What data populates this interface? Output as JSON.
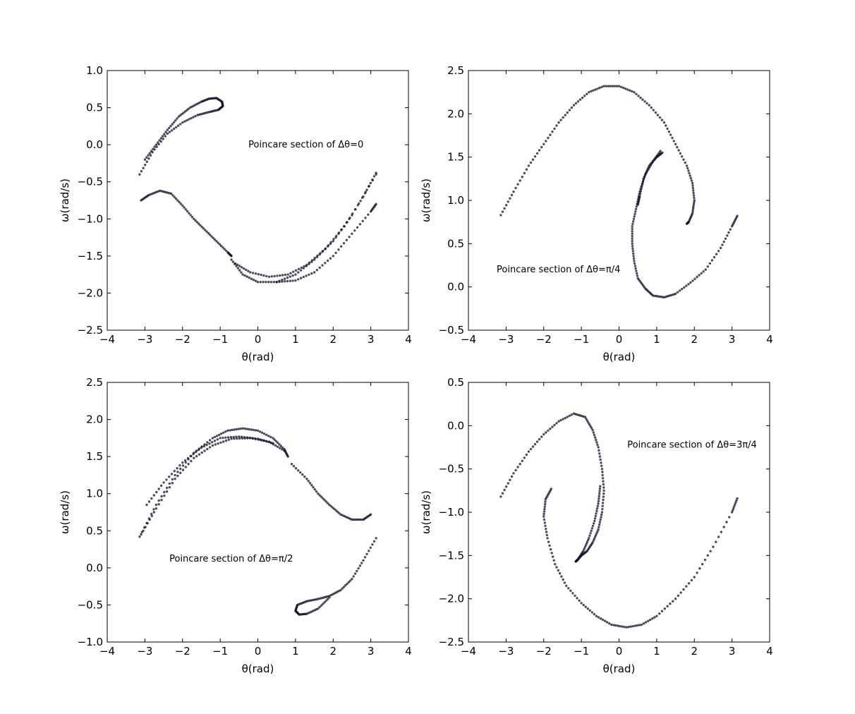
{
  "chart_data": [
    {
      "type": "scatter",
      "xlabel": "θ(rad)",
      "ylabel": "ω(rad/s)",
      "xlim": [
        -4,
        4
      ],
      "ylim": [
        -2.5,
        1.0
      ],
      "xticks": [
        "−4",
        "−3",
        "−2",
        "−1",
        "0",
        "1",
        "2",
        "3",
        "4"
      ],
      "yticks": [
        "−2.5",
        "−2.0",
        "−1.5",
        "−1.0",
        "−0.5",
        "0.0",
        "0.5",
        "1.0"
      ],
      "annotation": "Poincare section of Δθ=0",
      "annotation_pos": [
        -0.25,
        0.0
      ],
      "color": "#12122b",
      "series": [
        {
          "x": [
            -3.14,
            -2.8,
            -2.4,
            -2.0,
            -1.6,
            -1.3,
            -1.05,
            -0.93,
            -0.95,
            -1.1,
            -1.3,
            -1.5,
            -1.8,
            -2.1,
            -2.4,
            -2.7,
            -3.0
          ],
          "y": [
            -0.4,
            -0.1,
            0.15,
            0.3,
            0.4,
            0.44,
            0.47,
            0.52,
            0.58,
            0.63,
            0.62,
            0.58,
            0.5,
            0.38,
            0.2,
            0.0,
            -0.2
          ]
        },
        {
          "x": [
            -3.1,
            -2.9,
            -2.6,
            -2.3,
            -2.0,
            -1.7,
            -1.4,
            -1.1,
            -0.8,
            -0.7
          ],
          "y": [
            -0.75,
            -0.68,
            -0.62,
            -0.66,
            -0.82,
            -1.0,
            -1.15,
            -1.3,
            -1.45,
            -1.5
          ]
        },
        {
          "x": [
            -0.7,
            -0.4,
            0.0,
            0.5,
            1.0,
            1.5,
            2.0,
            2.5,
            3.14
          ],
          "y": [
            -1.55,
            -1.75,
            -1.85,
            -1.85,
            -1.75,
            -1.55,
            -1.3,
            -0.95,
            -0.4
          ]
        },
        {
          "x": [
            -0.6,
            -0.2,
            0.3,
            0.8,
            1.3,
            1.8,
            2.3,
            2.8,
            3.14
          ],
          "y": [
            -1.6,
            -1.72,
            -1.78,
            -1.75,
            -1.62,
            -1.4,
            -1.1,
            -0.7,
            -0.38
          ]
        },
        {
          "x": [
            0.5,
            1.0,
            1.5,
            2.0,
            2.5,
            3.0,
            3.14
          ],
          "y": [
            -1.85,
            -1.83,
            -1.72,
            -1.5,
            -1.2,
            -0.9,
            -0.8
          ]
        }
      ]
    },
    {
      "type": "scatter",
      "xlabel": "θ(rad)",
      "ylabel": "ω(rad/s)",
      "xlim": [
        -4,
        4
      ],
      "ylim": [
        -0.5,
        2.5
      ],
      "xticks": [
        "−4",
        "−3",
        "−2",
        "−1",
        "0",
        "1",
        "2",
        "3",
        "4"
      ],
      "yticks": [
        "−0.5",
        "0.0",
        "0.5",
        "1.0",
        "1.5",
        "2.0",
        "2.5"
      ],
      "annotation": "Poincare section of Δθ=π/4",
      "annotation_pos": [
        -3.25,
        0.2
      ],
      "color": "#12122b",
      "series": [
        {
          "x": [
            -3.14,
            -2.8,
            -2.4,
            -2.0,
            -1.6,
            -1.2,
            -0.8,
            -0.4,
            0.0,
            0.4,
            0.8,
            1.2,
            1.5,
            1.8,
            1.95,
            2.0,
            1.95,
            1.85,
            1.8
          ],
          "y": [
            0.83,
            1.1,
            1.4,
            1.65,
            1.9,
            2.1,
            2.25,
            2.32,
            2.32,
            2.25,
            2.1,
            1.9,
            1.65,
            1.4,
            1.2,
            1.0,
            0.85,
            0.75,
            0.73
          ]
        },
        {
          "x": [
            1.1,
            0.9,
            0.7,
            0.55,
            0.45,
            0.35,
            0.35,
            0.4,
            0.5,
            0.7,
            0.9,
            1.2,
            1.5,
            1.9,
            2.3,
            2.7,
            3.0,
            3.14
          ],
          "y": [
            1.57,
            1.45,
            1.3,
            1.1,
            0.9,
            0.7,
            0.5,
            0.3,
            0.1,
            -0.02,
            -0.1,
            -0.12,
            -0.08,
            0.05,
            0.2,
            0.45,
            0.7,
            0.82
          ]
        },
        {
          "x": [
            1.15,
            1.0,
            0.8,
            0.65,
            0.55,
            0.5
          ],
          "y": [
            1.55,
            1.5,
            1.4,
            1.25,
            1.05,
            0.95
          ]
        }
      ]
    },
    {
      "type": "scatter",
      "xlabel": "θ(rad)",
      "ylabel": "ω(rad/s)",
      "xlim": [
        -4,
        4
      ],
      "ylim": [
        -1.0,
        2.5
      ],
      "xticks": [
        "−4",
        "−3",
        "−2",
        "−1",
        "0",
        "1",
        "2",
        "3",
        "4"
      ],
      "yticks": [
        "−1.0",
        "−0.5",
        "0.0",
        "0.5",
        "1.0",
        "1.5",
        "2.0",
        "2.5"
      ],
      "annotation": "Poincare section of Δθ=π/2",
      "annotation_pos": [
        -2.35,
        0.12
      ],
      "color": "#12122b",
      "series": [
        {
          "x": [
            -3.14,
            -2.7,
            -2.2,
            -1.7,
            -1.2,
            -0.8,
            -0.4,
            0.0,
            0.4,
            0.7,
            0.8
          ],
          "y": [
            0.42,
            0.85,
            1.25,
            1.55,
            1.75,
            1.85,
            1.88,
            1.85,
            1.75,
            1.6,
            1.5
          ]
        },
        {
          "x": [
            -3.1,
            -2.7,
            -2.2,
            -1.7,
            -1.2,
            -0.7,
            -0.2,
            0.3,
            0.7
          ],
          "y": [
            0.45,
            0.8,
            1.2,
            1.48,
            1.65,
            1.74,
            1.75,
            1.7,
            1.58
          ]
        },
        {
          "x": [
            -2.95,
            -2.5,
            -2.0,
            -1.5,
            -1.0,
            -0.5,
            0.0,
            0.4
          ],
          "y": [
            0.85,
            1.15,
            1.42,
            1.62,
            1.75,
            1.77,
            1.74,
            1.68
          ]
        },
        {
          "x": [
            0.9,
            1.3,
            1.6,
            1.9,
            2.2,
            2.5,
            2.8,
            3.0
          ],
          "y": [
            1.4,
            1.2,
            1.0,
            0.85,
            0.72,
            0.65,
            0.65,
            0.72
          ]
        },
        {
          "x": [
            3.14,
            2.8,
            2.5,
            2.2,
            1.9,
            1.6,
            1.3,
            1.05,
            1.0,
            1.1,
            1.3,
            1.6,
            1.9
          ],
          "y": [
            0.4,
            0.1,
            -0.15,
            -0.3,
            -0.38,
            -0.42,
            -0.45,
            -0.5,
            -0.58,
            -0.63,
            -0.62,
            -0.55,
            -0.4
          ]
        }
      ]
    },
    {
      "type": "scatter",
      "xlabel": "θ(rad)",
      "ylabel": "ω(rad/s)",
      "xlim": [
        -4,
        4
      ],
      "ylim": [
        -2.5,
        0.5
      ],
      "xticks": [
        "−4",
        "−3",
        "−2",
        "−1",
        "0",
        "1",
        "2",
        "3",
        "4"
      ],
      "yticks": [
        "−2.5",
        "−2.0",
        "−1.5",
        "−1.0",
        "−0.5",
        "0.0",
        "0.5"
      ],
      "annotation": "Poincare section of Δθ=3π/4",
      "annotation_pos": [
        0.22,
        -0.22
      ],
      "color": "#12122b",
      "series": [
        {
          "x": [
            -3.14,
            -2.8,
            -2.4,
            -2.0,
            -1.6,
            -1.2,
            -0.9,
            -0.7,
            -0.55,
            -0.45,
            -0.4,
            -0.45,
            -0.55,
            -0.7,
            -0.85,
            -1.0,
            -1.1,
            -1.15
          ],
          "y": [
            -0.82,
            -0.55,
            -0.3,
            -0.1,
            0.05,
            0.14,
            0.1,
            -0.05,
            -0.25,
            -0.5,
            -0.75,
            -1.0,
            -1.2,
            -1.35,
            -1.45,
            -1.5,
            -1.55,
            -1.57
          ]
        },
        {
          "x": [
            -1.8,
            -1.95,
            -2.0,
            -1.9,
            -1.7,
            -1.4,
            -1.0,
            -0.6,
            -0.2,
            0.2,
            0.6,
            1.0,
            1.5,
            2.0,
            2.5,
            3.0,
            3.14
          ],
          "y": [
            -0.73,
            -0.85,
            -1.05,
            -1.3,
            -1.6,
            -1.85,
            -2.05,
            -2.2,
            -2.3,
            -2.33,
            -2.3,
            -2.2,
            -2.0,
            -1.75,
            -1.4,
            -1.0,
            -0.84
          ]
        },
        {
          "x": [
            -0.5,
            -0.55,
            -0.65,
            -0.8,
            -0.95,
            -1.1
          ],
          "y": [
            -0.7,
            -0.9,
            -1.1,
            -1.3,
            -1.45,
            -1.55
          ]
        }
      ]
    }
  ]
}
